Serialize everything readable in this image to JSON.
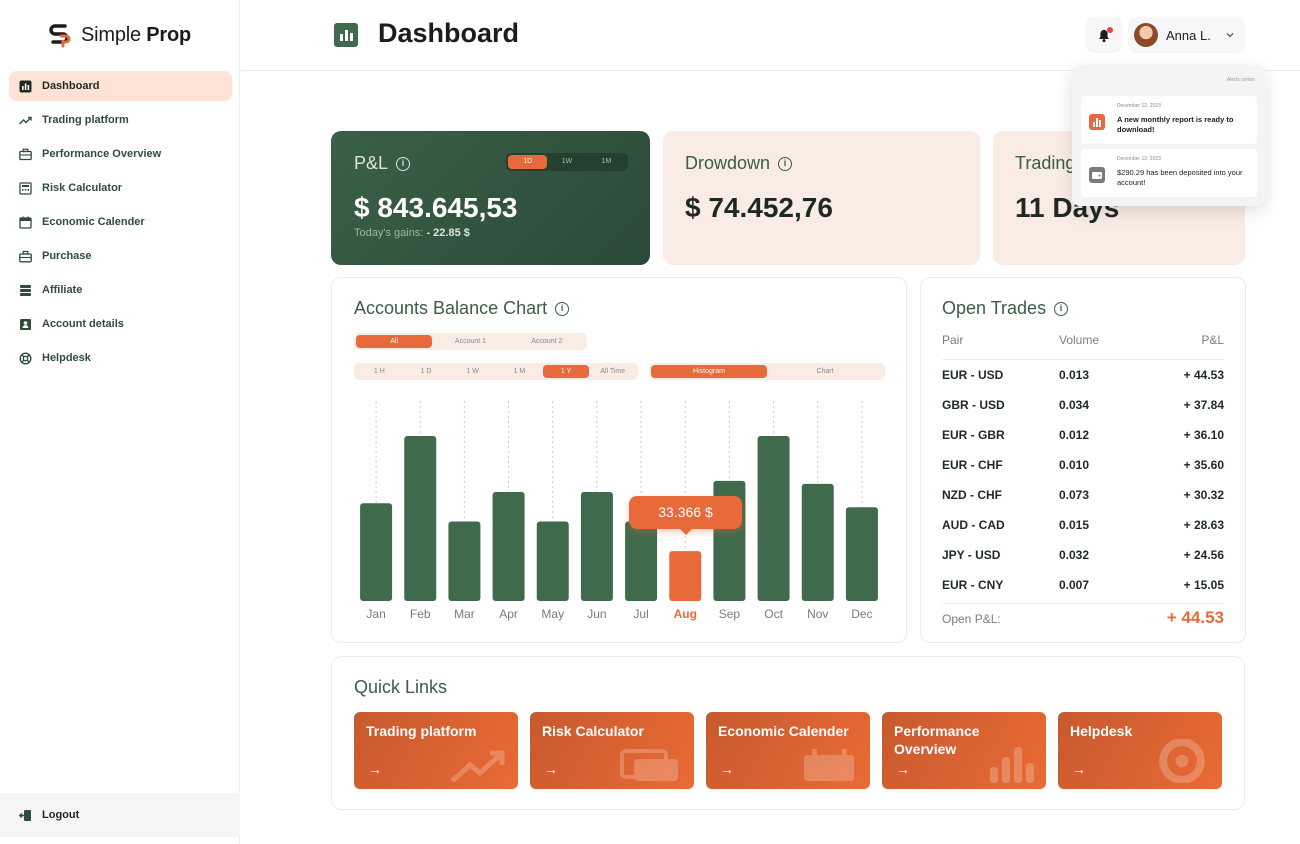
{
  "brand": {
    "name_light": "Simple",
    "name_bold": "Prop"
  },
  "sidebar": {
    "items": [
      {
        "label": "Dashboard",
        "icon": "chart-bars-icon",
        "active": true
      },
      {
        "label": "Trading platform",
        "icon": "trend-up-icon"
      },
      {
        "label": "Performance Overview",
        "icon": "briefcase-icon"
      },
      {
        "label": "Risk Calculator",
        "icon": "calculator-icon"
      },
      {
        "label": "Economic Calender",
        "icon": "calendar-icon"
      },
      {
        "label": "Purchase",
        "icon": "bag-icon"
      },
      {
        "label": "Affiliate",
        "icon": "stack-icon"
      },
      {
        "label": "Account details",
        "icon": "user-card-icon"
      },
      {
        "label": "Helpdesk",
        "icon": "lifebuoy-icon"
      }
    ],
    "logout_label": "Logout"
  },
  "header": {
    "title": "Dashboard",
    "user_name": "Anna L."
  },
  "stats": {
    "pl": {
      "label": "P&L",
      "periods": [
        "1D",
        "1W",
        "1M"
      ],
      "active_period": "1D",
      "value": "$ 843.645,53",
      "sub_label": "Today's gains:",
      "sub_value": "- 22.85 $"
    },
    "drawdown": {
      "label": "Drowdown",
      "value": "$ 74.452,76"
    },
    "trading": {
      "label": "Trading",
      "value": "11 Days"
    }
  },
  "balance_chart": {
    "title": "Accounts Balance Chart",
    "accounts": [
      "All",
      "Account 1",
      "Account 2"
    ],
    "active_account": "All",
    "ranges": [
      "1 H",
      "1 D",
      "1 W",
      "1 M",
      "1 Y",
      "All Time"
    ],
    "active_range": "1 Y",
    "views": [
      "Histogram",
      "Chart"
    ],
    "active_view": "Histogram",
    "tooltip": "33.366 $"
  },
  "chart_data": {
    "type": "bar",
    "categories": [
      "Jan",
      "Feb",
      "Mar",
      "Apr",
      "May",
      "Jun",
      "Jul",
      "Aug",
      "Sep",
      "Oct",
      "Nov",
      "Dec"
    ],
    "values": [
      96,
      162,
      78,
      107,
      78,
      107,
      78,
      49,
      118,
      162,
      115,
      92
    ],
    "highlight": "Aug",
    "colors": {
      "bar": "#3f6b4c",
      "highlight": "#e8693a"
    }
  },
  "open_trades": {
    "title": "Open Trades",
    "columns": [
      "Pair",
      "Volume",
      "P&L"
    ],
    "rows": [
      [
        "EUR - USD",
        "0.013",
        "+ 44.53"
      ],
      [
        "GBR - USD",
        "0.034",
        "+ 37.84"
      ],
      [
        "EUR - GBR",
        "0.012",
        "+ 36.10"
      ],
      [
        "EUR - CHF",
        "0.010",
        "+ 35.60"
      ],
      [
        "NZD - CHF",
        "0.073",
        "+ 30.32"
      ],
      [
        "AUD - CAD",
        "0.015",
        "+ 28.63"
      ],
      [
        "JPY - USD",
        "0.032",
        "+ 24.56"
      ],
      [
        "EUR - CNY",
        "0.007",
        "+ 15.05"
      ]
    ],
    "footer_label": "Open P&L:",
    "footer_value": "+ 44.53"
  },
  "quick_links": {
    "title": "Quick Links",
    "items": [
      {
        "label": "Trading platform",
        "arrow": "→"
      },
      {
        "label": "Risk Calculator",
        "arrow": "→"
      },
      {
        "label": "Economic Calender",
        "arrow": "→"
      },
      {
        "label": "Performance Overview",
        "arrow": "→"
      },
      {
        "label": "Helpdesk",
        "arrow": "→"
      }
    ]
  },
  "alerts": {
    "title": "Alerts center",
    "items": [
      {
        "date": "December 12, 2023",
        "message": "A new monthly report is ready to download!",
        "icon": "report-icon"
      },
      {
        "date": "December 12, 2023",
        "message": "$290.29 has been deposited into your account!",
        "icon": "wallet-icon"
      }
    ]
  },
  "colors": {
    "brand_green": "#3f6b4c",
    "accent_orange": "#e8693a",
    "cream": "#f8ece4"
  }
}
